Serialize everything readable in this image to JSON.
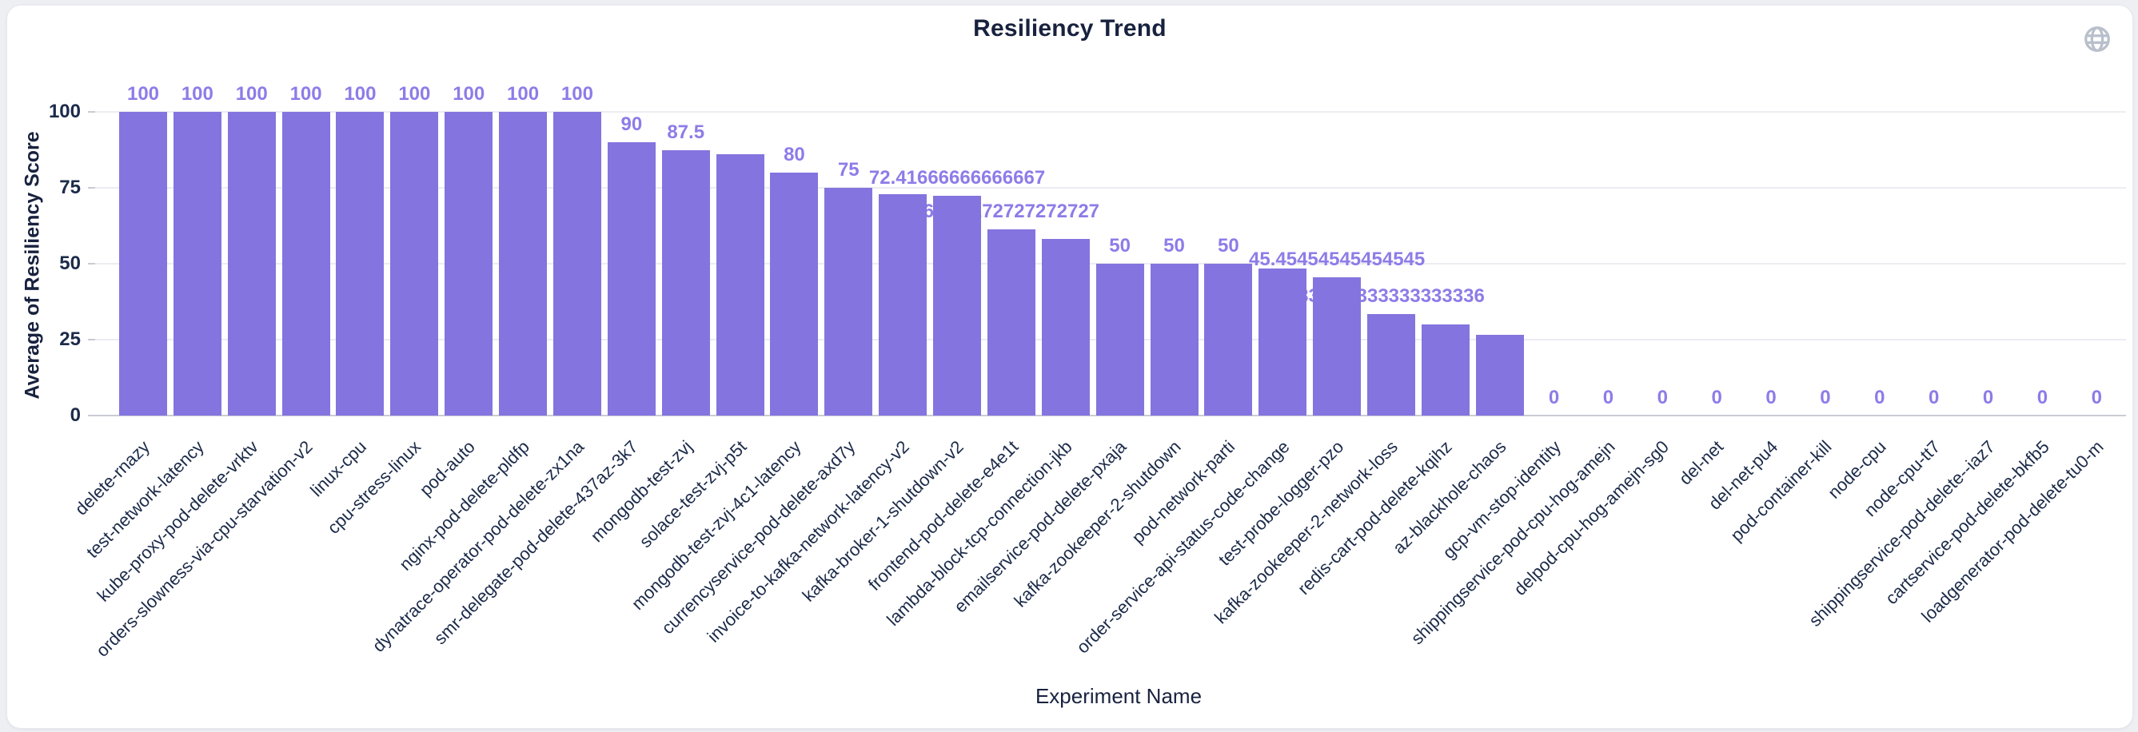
{
  "page": {
    "title": "Resiliency Trend"
  },
  "header": {
    "globe_icon": "globe"
  },
  "colors": {
    "bar": "#8474DF",
    "value_label": "#8D7CE8",
    "axis_text": "#1C2B4A",
    "title_text": "#18223F",
    "gridline": "#ECECF1",
    "axis_line": "#C9CCD3",
    "icon": "#B9C0CB",
    "page_background": "#EDEFF3",
    "card_background": "#FFFFFF"
  },
  "chart_data": {
    "type": "bar",
    "title": "Resiliency Trend",
    "xlabel": "Experiment Name",
    "ylabel": "Average of Resiliency Score",
    "ylim": [
      0,
      100
    ],
    "yticks": [
      0,
      25,
      50,
      75,
      100
    ],
    "ytick_labels": [
      "0",
      "25",
      "50",
      "75",
      "100"
    ],
    "grid": true,
    "legend": false,
    "categories": [
      "delete-rnazy",
      "test-network-latency",
      "kube-proxy-pod-delete-vrktv",
      "orders-slowness-via-cpu-starvation-v2",
      "linux-cpu",
      "cpu-stress-linux",
      "pod-auto",
      "nginx-pod-delete-pldfp",
      "dynatrace-operator-pod-delete-zx1na",
      "smr-delegate-pod-delete-437az-3k7",
      "mongodb-test-zvj",
      "solace-test-zvj-p5t",
      "mongodb-test-zvj-4c1-latency",
      "currencyservice-pod-delete-axd7y",
      "invoice-to-kafka-network-latency-v2",
      "kafka-broker-1-shutdown-v2",
      "frontend-pod-delete-e4e1t",
      "lambda-block-tcp-connection-jkb",
      "emailservice-pod-delete-pxaja",
      "kafka-zookeeper-2-shutdown",
      "pod-network-parti",
      "order-service-api-status-code-change",
      "test-probe-logger-pzo",
      "kafka-zookeeper-2-network-loss",
      "redis-cart-pod-delete-kqihz",
      "az-blackhole-chaos",
      "gcp-vm-stop-identity",
      "shippingservice-pod-cpu-hog-amejn",
      "delpod-cpu-hog-amejn-sg0",
      "del-net",
      "del-net-pu4",
      "pod-container-kill",
      "node-cpu",
      "node-cpu-tt7",
      "shippingservice-pod-delete--iaz7",
      "cartservice-pod-delete-bkfb5",
      "loadgenerator-pod-delete-tu0-m"
    ],
    "values": [
      100,
      100,
      100,
      100,
      100,
      100,
      100,
      100,
      100,
      90,
      87.5,
      86,
      80,
      75,
      73,
      72.41666666666667,
      61.27272727272727,
      58.2,
      50,
      50,
      50,
      48.3,
      45.45454545454545,
      33.333333333333336,
      30,
      26.7,
      0,
      0,
      0,
      0,
      0,
      0,
      0,
      0,
      0,
      0,
      0
    ],
    "data_labels": [
      "100",
      "100",
      "100",
      "100",
      "100",
      "100",
      "100",
      "100",
      "100",
      "90",
      "87.5",
      null,
      "80",
      "75",
      null,
      "72.41666666666667",
      "61.27272727272727",
      null,
      "50",
      "50",
      "50",
      null,
      "45.45454545454545",
      "33.333333333333336",
      null,
      null,
      "0",
      "0",
      "0",
      "0",
      "0",
      "0",
      "0",
      "0",
      "0",
      "0",
      "0"
    ]
  }
}
